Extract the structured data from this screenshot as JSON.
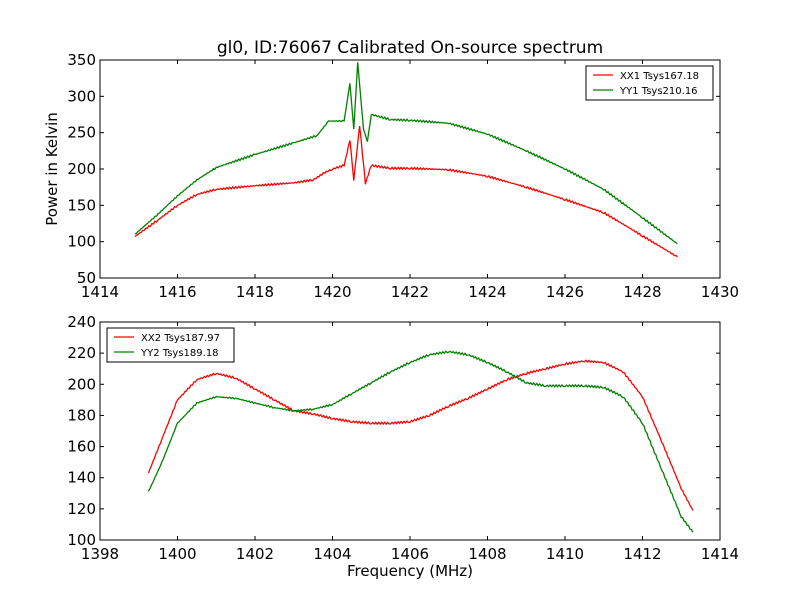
{
  "chart_data": [
    {
      "type": "line",
      "title": "gl0, ID:76067 Calibrated On-source spectrum",
      "xlabel": "",
      "ylabel": "Power in Kelvin",
      "xlim": [
        1414,
        1430
      ],
      "ylim": [
        50,
        350
      ],
      "xticks": [
        "1414",
        "1416",
        "1418",
        "1420",
        "1422",
        "1424",
        "1426",
        "1428",
        "1430"
      ],
      "yticks": [
        "50",
        "100",
        "150",
        "200",
        "250",
        "300",
        "350"
      ],
      "grid": false,
      "legend_position": "top-right",
      "series": [
        {
          "name": "XX1 Tsys167.18",
          "color": "#ff0000",
          "x": [
            1414.9,
            1415.5,
            1416,
            1416.5,
            1417,
            1418,
            1419,
            1419.5,
            1419.8,
            1420,
            1420.3,
            1420.45,
            1420.55,
            1420.7,
            1420.85,
            1421,
            1421.5,
            1422,
            1423,
            1424,
            1425,
            1426,
            1427,
            1428,
            1428.9
          ],
          "y": [
            107,
            130,
            150,
            165,
            172,
            177,
            181,
            185,
            195,
            200,
            205,
            240,
            185,
            260,
            180,
            205,
            201,
            201,
            199,
            190,
            175,
            158,
            140,
            108,
            79
          ]
        },
        {
          "name": "YY1 Tsys210.16",
          "color": "#008000",
          "x": [
            1414.9,
            1415.5,
            1416,
            1416.5,
            1417,
            1418,
            1419,
            1419.6,
            1419.9,
            1420.3,
            1420.45,
            1420.55,
            1420.65,
            1420.8,
            1420.9,
            1421,
            1421.5,
            1422,
            1423,
            1424,
            1425,
            1426,
            1427,
            1428,
            1428.9
          ],
          "y": [
            110,
            138,
            163,
            185,
            202,
            220,
            236,
            246,
            266,
            266,
            318,
            255,
            347,
            255,
            238,
            275,
            268,
            267,
            263,
            248,
            225,
            200,
            172,
            133,
            97
          ]
        }
      ]
    },
    {
      "type": "line",
      "title": "",
      "xlabel": "Frequency (MHz)",
      "ylabel": "",
      "xlim": [
        1398,
        1414
      ],
      "ylim": [
        100,
        240
      ],
      "xticks": [
        "1398",
        "1400",
        "1402",
        "1404",
        "1406",
        "1408",
        "1410",
        "1412",
        "1414"
      ],
      "yticks": [
        "100",
        "120",
        "140",
        "160",
        "180",
        "200",
        "220",
        "240"
      ],
      "grid": false,
      "legend_position": "top-left",
      "series": [
        {
          "name": "XX2 Tsys187.97",
          "color": "#ff0000",
          "x": [
            1399.25,
            1399.6,
            1400,
            1400.5,
            1401,
            1401.5,
            1402,
            1402.5,
            1403,
            1403.5,
            1404,
            1404.5,
            1405,
            1405.5,
            1406,
            1406.5,
            1407,
            1407.5,
            1408,
            1408.5,
            1409,
            1409.5,
            1410,
            1410.5,
            1411,
            1411.5,
            1412,
            1412.5,
            1413,
            1413.3
          ],
          "y": [
            143,
            165,
            190,
            203,
            207,
            204,
            197,
            190,
            183,
            181,
            178,
            176,
            175,
            175,
            176,
            180,
            186,
            191,
            197,
            203,
            207,
            210,
            213,
            215,
            214,
            208,
            192,
            163,
            133,
            119
          ]
        },
        {
          "name": "YY2 Tsys189.18",
          "color": "#008000",
          "x": [
            1399.25,
            1399.6,
            1400,
            1400.5,
            1401,
            1401.5,
            1402,
            1402.5,
            1403,
            1403.5,
            1404,
            1404.5,
            1405,
            1405.5,
            1406,
            1406.5,
            1407,
            1407.5,
            1408,
            1408.5,
            1409,
            1409.5,
            1410,
            1410.5,
            1411,
            1411.5,
            1412,
            1412.5,
            1413,
            1413.3
          ],
          "y": [
            131,
            150,
            175,
            188,
            192,
            191,
            188,
            185,
            183,
            184,
            187,
            194,
            201,
            208,
            214,
            219,
            221,
            219,
            214,
            208,
            201,
            199,
            199,
            199,
            198,
            192,
            175,
            145,
            115,
            105
          ]
        }
      ]
    }
  ]
}
